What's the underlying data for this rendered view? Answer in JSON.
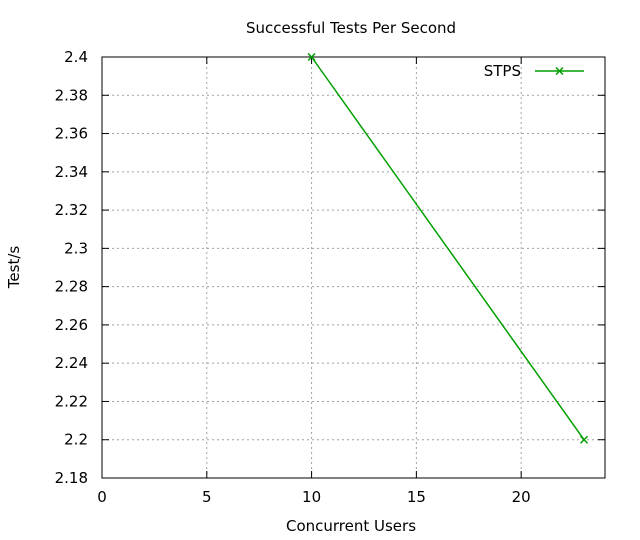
{
  "chart_data": {
    "type": "line",
    "title": "Successful Tests Per Second",
    "xlabel": "Concurrent Users",
    "ylabel": "Test/s",
    "xlim": [
      0,
      24
    ],
    "ylim": [
      2.18,
      2.4
    ],
    "xticks": [
      0,
      5,
      10,
      15,
      20
    ],
    "yticks": [
      2.18,
      2.2,
      2.22,
      2.24,
      2.26,
      2.28,
      2.3,
      2.32,
      2.34,
      2.36,
      2.38,
      2.4
    ],
    "ytick_labels": [
      "2.18",
      "2.2",
      "2.22",
      "2.24",
      "2.26",
      "2.28",
      "2.3",
      "2.32",
      "2.34",
      "2.36",
      "2.38",
      "2.4"
    ],
    "grid": true,
    "legend_position": "top-right",
    "series": [
      {
        "name": "STPS",
        "color": "#00a000",
        "marker": "x",
        "points": [
          {
            "x": 10,
            "y": 2.4
          },
          {
            "x": 23,
            "y": 2.2
          }
        ]
      }
    ]
  }
}
